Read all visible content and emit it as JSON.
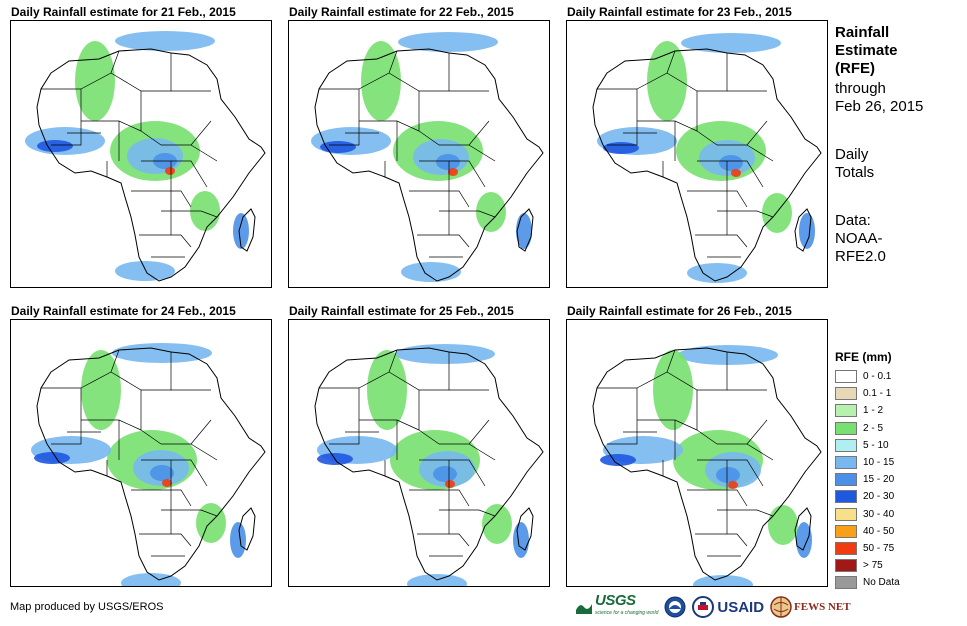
{
  "panels": [
    {
      "title": "Daily Rainfall estimate for 21 Feb., 2015"
    },
    {
      "title": "Daily Rainfall estimate for 22 Feb., 2015"
    },
    {
      "title": "Daily Rainfall estimate for 23 Feb., 2015"
    },
    {
      "title": "Daily Rainfall estimate for 24 Feb., 2015"
    },
    {
      "title": "Daily Rainfall estimate for 25 Feb., 2015"
    },
    {
      "title": "Daily Rainfall estimate for 26 Feb., 2015"
    }
  ],
  "side": {
    "title_lines": [
      "Rainfall",
      "Estimate",
      "(RFE)"
    ],
    "through_lines": [
      "through",
      "Feb 26, 2015"
    ],
    "totals_lines": [
      "Daily",
      "Totals"
    ],
    "data_lines": [
      "Data:",
      "NOAA-",
      "RFE2.0"
    ]
  },
  "legend": {
    "title": "RFE (mm)",
    "items": [
      {
        "label": "0 - 0.1",
        "color": "#ffffff"
      },
      {
        "label": "0.1 - 1",
        "color": "#e8d8b8"
      },
      {
        "label": "1 - 2",
        "color": "#b8f0b0"
      },
      {
        "label": "2 - 5",
        "color": "#78e070"
      },
      {
        "label": "5 - 10",
        "color": "#b0eef2"
      },
      {
        "label": "10 - 15",
        "color": "#78b8f0"
      },
      {
        "label": "15 - 20",
        "color": "#4a90e8"
      },
      {
        "label": "20 - 30",
        "color": "#1e58e0"
      },
      {
        "label": "30 - 40",
        "color": "#f8e088"
      },
      {
        "label": "40 - 50",
        "color": "#f8a018"
      },
      {
        "label": "50 - 75",
        "color": "#f03c10"
      },
      {
        "label": "> 75",
        "color": "#a01818"
      },
      {
        "label": "No Data",
        "color": "#999999"
      }
    ]
  },
  "credit": "Map produced by USGS/EROS",
  "logos": {
    "usgs": "USGS",
    "usgs_tag": "science for a changing world",
    "usaid": "USAID",
    "fews": "FEWS NET"
  },
  "map_features": {
    "land_outline_color": "#000000",
    "background": "#ffffff"
  }
}
